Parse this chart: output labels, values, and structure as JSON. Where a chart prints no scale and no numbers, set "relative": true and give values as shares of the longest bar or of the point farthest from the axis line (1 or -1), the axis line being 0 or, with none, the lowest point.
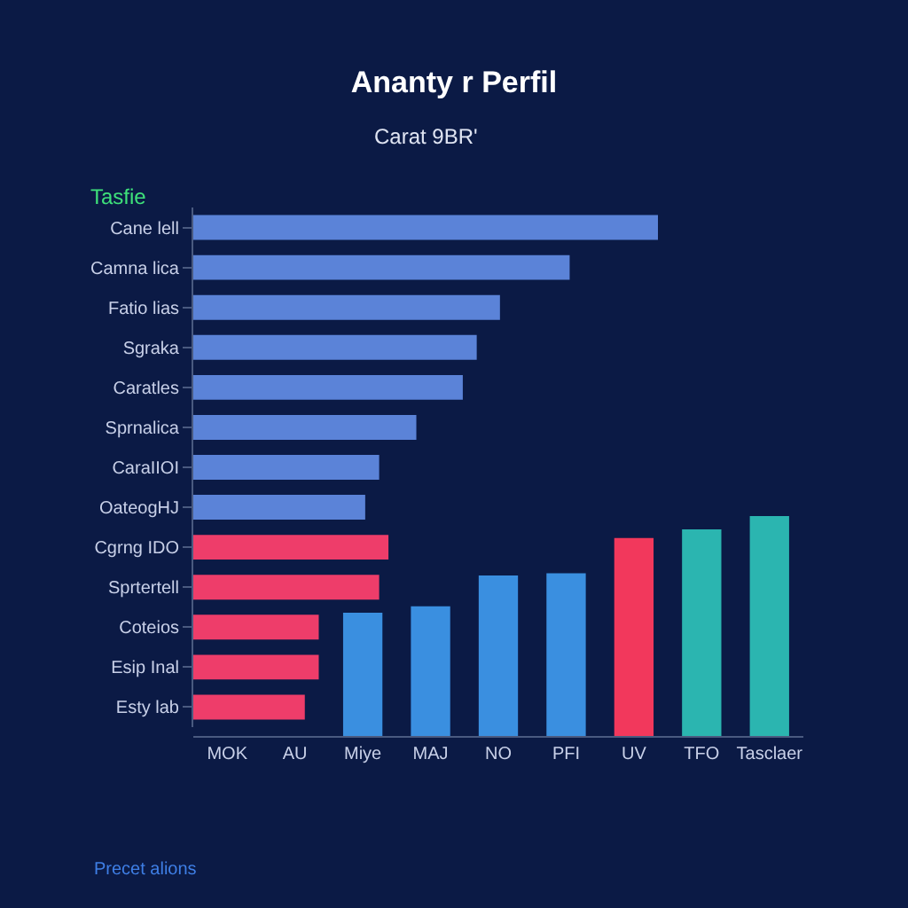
{
  "chart_data": [
    {
      "type": "bar",
      "orientation": "horizontal",
      "relative": true,
      "title": "Ananty r Perfil",
      "subtitle": "Carat 9BR'",
      "annotations": [
        "Tasfie",
        "Precet alions"
      ],
      "categories": [
        "Cane lell",
        "Camna lica",
        "Fatio lias",
        "Sgraka",
        "Caratles",
        "Sprnalica",
        "CaraIIOI",
        "OateoɡHJ",
        "Cgrng IDO",
        "Sprtertell",
        "Coteios",
        "Esip Inal",
        "Esty lab"
      ],
      "values": [
        1,
        0.81,
        0.66,
        0.61,
        0.58,
        0.48,
        0.4,
        0.37,
        0.42,
        0.4,
        0.27,
        0.27,
        0.24
      ],
      "colors": [
        "#5b83d8",
        "#5b83d8",
        "#5b83d8",
        "#5b83d8",
        "#5b83d8",
        "#5b83d8",
        "#5b83d8",
        "#5b83d8",
        "#ee3d6a",
        "#ee3d6a",
        "#ee3d6a",
        "#ee3d6a",
        "#ee3d6a"
      ]
    },
    {
      "type": "bar",
      "relative": true,
      "categories": [
        "MOK",
        "AU",
        "Miye",
        "MAJ",
        "NO",
        "PFI",
        "UV",
        "TFO",
        "Tasclaer"
      ],
      "values": [
        null,
        null,
        0.56,
        0.59,
        0.73,
        0.74,
        0.9,
        0.94,
        1
      ],
      "colors": [
        "#3a8fe0",
        "#3a8fe0",
        "#3a8fe0",
        "#3a8fe0",
        "#3a8fe0",
        "#3a8fe0",
        "#f2385c",
        "#2bb5b0",
        "#2bb5b0"
      ]
    }
  ]
}
